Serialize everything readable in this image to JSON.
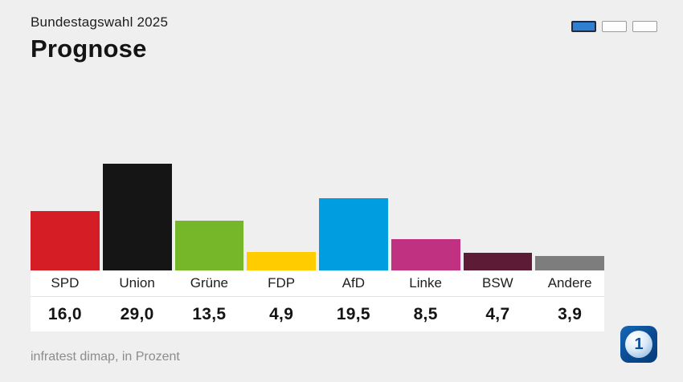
{
  "header": {
    "subtitle": "Bundestagswahl 2025",
    "title": "Prognose"
  },
  "pager": {
    "total": 3,
    "active_index": 0,
    "active_color": "#2f80d0"
  },
  "chart_data": {
    "type": "bar",
    "title": "Prognose",
    "subtitle": "Bundestagswahl 2025",
    "categories": [
      "SPD",
      "Union",
      "Grüne",
      "FDP",
      "AfD",
      "Linke",
      "BSW",
      "Andere"
    ],
    "values": [
      16.0,
      29.0,
      13.5,
      4.9,
      19.5,
      8.5,
      4.7,
      3.9
    ],
    "value_labels": [
      "16,0",
      "29,0",
      "13,5",
      "4,9",
      "19,5",
      "8,5",
      "4,7",
      "3,9"
    ],
    "bar_colors": [
      "#d41d24",
      "#151515",
      "#76b72a",
      "#ffcc00",
      "#009ee0",
      "#c13181",
      "#5e1b36",
      "#7d7d7d"
    ],
    "ylim": [
      0,
      30
    ],
    "unit": "Prozent",
    "grid": false,
    "legend": "none"
  },
  "footer": {
    "source": "infratest dimap, in Prozent"
  },
  "logo": {
    "name": "ARD-logo",
    "text": "1",
    "background": "#0d57a5"
  },
  "colors": {
    "background": "#efefef",
    "band": "#ffffff",
    "text_dark": "#1d1d1b",
    "text_muted": "#8c8c8c"
  }
}
